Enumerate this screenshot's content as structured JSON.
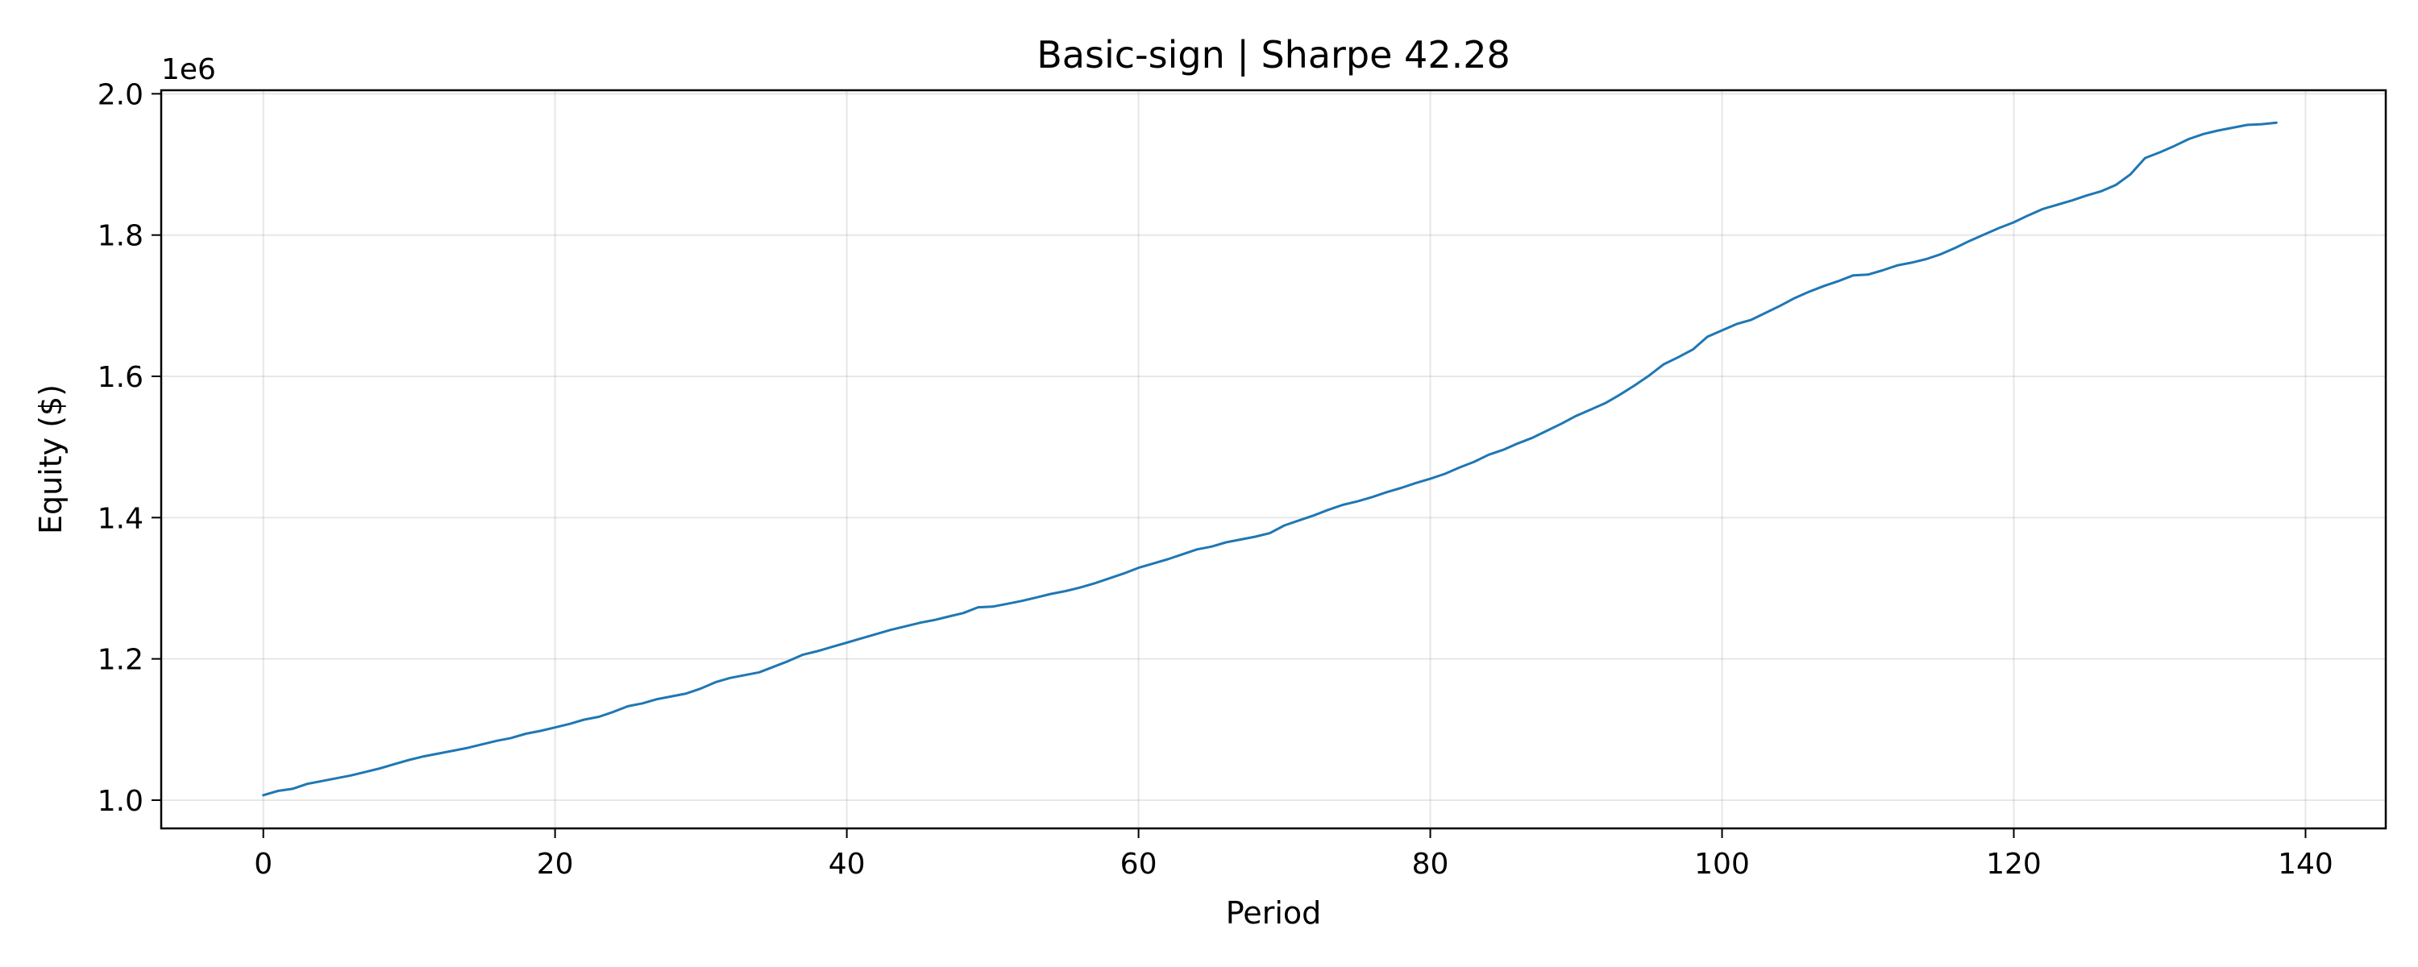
{
  "chart_data": {
    "type": "line",
    "title": "Basic-sign | Sharpe 42.28",
    "xlabel": "Period",
    "ylabel": "Equity ($)",
    "y_scale_label": "1e6",
    "xlim": [
      -7,
      145.5
    ],
    "ylim": [
      0.96,
      2.005
    ],
    "x_ticks": [
      0,
      20,
      40,
      60,
      80,
      100,
      120,
      140
    ],
    "y_ticks": [
      1.0,
      1.2,
      1.4,
      1.6,
      1.8,
      2.0
    ],
    "x_tick_labels": [
      "0",
      "20",
      "40",
      "60",
      "80",
      "100",
      "120",
      "140"
    ],
    "y_tick_labels": [
      "1.0",
      "1.2",
      "1.4",
      "1.6",
      "1.8",
      "2.0"
    ],
    "grid": true,
    "series_color": "#1f77b4",
    "series": [
      {
        "x": [
          0,
          1,
          2,
          3,
          4,
          5,
          6,
          7,
          8,
          9,
          10,
          11,
          12,
          13,
          14,
          15,
          16,
          17,
          18,
          19,
          20,
          21,
          22,
          23,
          24,
          25,
          26,
          27,
          28,
          29,
          30,
          31,
          32,
          33,
          34,
          35,
          36,
          37,
          38,
          39,
          40,
          41,
          42,
          43,
          44,
          45,
          46,
          47,
          48,
          49,
          50,
          51,
          52,
          53,
          54,
          55,
          56,
          57,
          58,
          59,
          60,
          61,
          62,
          63,
          64,
          65,
          66,
          67,
          68,
          69,
          70,
          71,
          72,
          73,
          74,
          75,
          76,
          77,
          78,
          79,
          80,
          81,
          82,
          83,
          84,
          85,
          86,
          87,
          88,
          89,
          90,
          91,
          92,
          93,
          94,
          95,
          96,
          97,
          98,
          99,
          100,
          101,
          102,
          103,
          104,
          105,
          106,
          107,
          108,
          109,
          110,
          111,
          112,
          113,
          114,
          115,
          116,
          117,
          118,
          119,
          120,
          121,
          122,
          123,
          124,
          125,
          126,
          127,
          128,
          129,
          130,
          131,
          132,
          133,
          134,
          135,
          136,
          137,
          138
        ],
        "values": [
          1.007,
          1.013,
          1.016,
          1.023,
          1.027,
          1.031,
          1.035,
          1.04,
          1.045,
          1.051,
          1.057,
          1.062,
          1.066,
          1.07,
          1.074,
          1.079,
          1.084,
          1.088,
          1.094,
          1.098,
          1.103,
          1.108,
          1.114,
          1.118,
          1.125,
          1.133,
          1.137,
          1.143,
          1.147,
          1.151,
          1.158,
          1.167,
          1.173,
          1.177,
          1.181,
          1.189,
          1.197,
          1.206,
          1.211,
          1.217,
          1.223,
          1.229,
          1.235,
          1.241,
          1.246,
          1.251,
          1.255,
          1.26,
          1.265,
          1.273,
          1.274,
          1.278,
          1.282,
          1.287,
          1.292,
          1.296,
          1.301,
          1.307,
          1.314,
          1.321,
          1.329,
          1.335,
          1.341,
          1.348,
          1.355,
          1.359,
          1.365,
          1.369,
          1.373,
          1.378,
          1.389,
          1.396,
          1.403,
          1.411,
          1.418,
          1.423,
          1.429,
          1.436,
          1.442,
          1.449,
          1.455,
          1.462,
          1.471,
          1.479,
          1.489,
          1.496,
          1.505,
          1.513,
          1.523,
          1.533,
          1.544,
          1.553,
          1.562,
          1.574,
          1.587,
          1.601,
          1.617,
          1.627,
          1.638,
          1.656,
          1.665,
          1.674,
          1.68,
          1.69,
          1.7,
          1.711,
          1.72,
          1.728,
          1.735,
          1.743,
          1.744,
          1.75,
          1.757,
          1.761,
          1.766,
          1.773,
          1.782,
          1.792,
          1.801,
          1.81,
          1.818,
          1.828,
          1.837,
          1.843,
          1.849,
          1.856,
          1.862,
          1.871,
          1.886,
          1.909,
          1.917,
          1.926,
          1.936,
          1.943,
          1.948,
          1.952,
          1.956,
          1.957,
          1.959
        ]
      }
    ]
  }
}
